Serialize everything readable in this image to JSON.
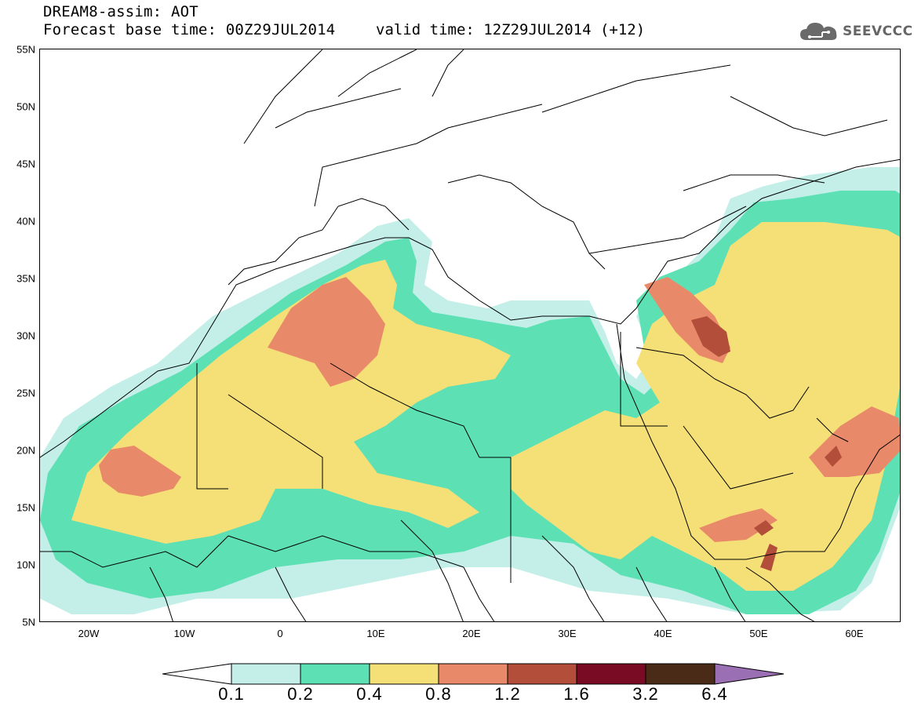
{
  "header": {
    "title_line1": "DREAM8-assim: AOT",
    "title_line2_base": "Forecast base time: 00Z29JUL2014",
    "title_line2_valid": "valid time: 12Z29JUL2014 (+12)"
  },
  "logo": {
    "text": "SEEVCCC",
    "icon": "cloud-icon"
  },
  "map": {
    "lat_labels": [
      "55N",
      "50N",
      "45N",
      "40N",
      "35N",
      "30N",
      "25N",
      "20N",
      "15N",
      "10N",
      "5N"
    ],
    "lon_labels": [
      "20W",
      "10W",
      "0",
      "10E",
      "20E",
      "30E",
      "40E",
      "50E",
      "60E"
    ],
    "colors": {
      "c01": "#c4efe8",
      "c02": "#5ee0b5",
      "c04": "#f5e077",
      "c08": "#e8896a",
      "c12": "#b24e3a",
      "c16": "#7a0b25",
      "c32": "#4a2b17",
      "c64": "#9b6fb3"
    }
  },
  "colorbar": {
    "labels": [
      "0.1",
      "0.2",
      "0.4",
      "0.8",
      "1.2",
      "1.6",
      "3.2",
      "6.4"
    ]
  }
}
